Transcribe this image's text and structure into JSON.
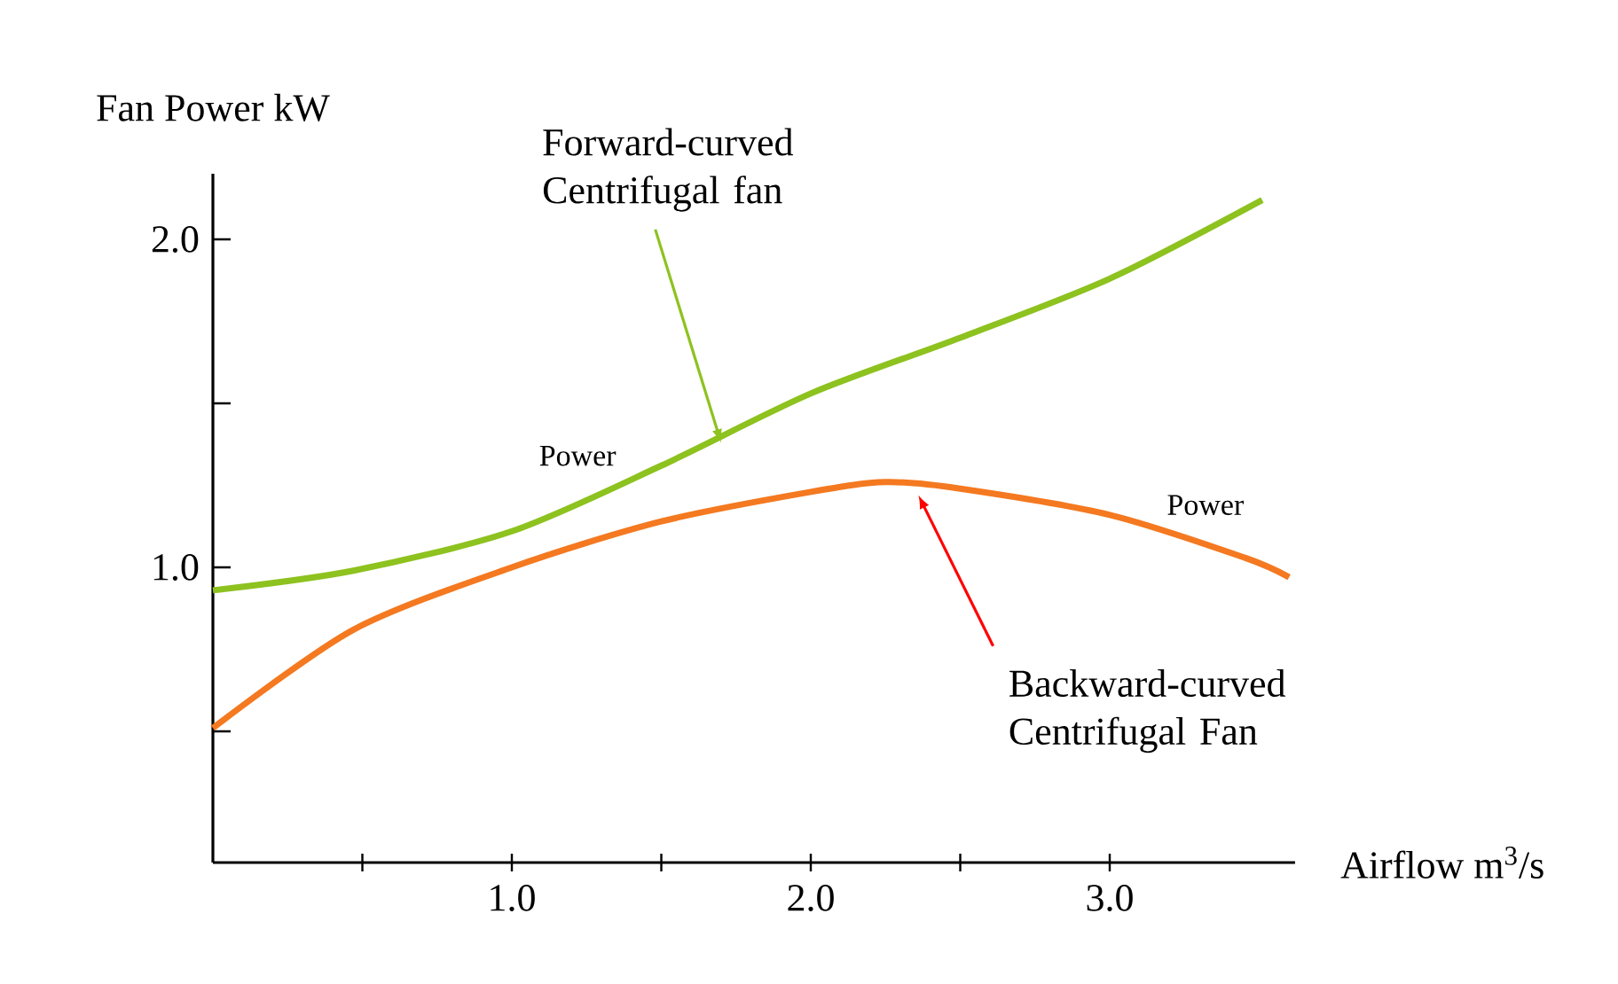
{
  "chart_data": {
    "type": "line",
    "xlabel": "Airflow m$^{3}$/s",
    "ylabel": "Fan Power kW",
    "series": [
      {
        "color": "#8dc21f",
        "x": [
          0,
          0.47,
          1.0,
          1.5,
          2.0,
          2.5,
          3.0,
          3.51
        ],
        "values": [
          0.93,
          0.99,
          1.11,
          1.31,
          1.53,
          1.7,
          1.88,
          2.12
        ]
      },
      {
        "color": "#f47920",
        "x": [
          0,
          0.47,
          1.0,
          1.5,
          2.0,
          2.25,
          2.5,
          3.0,
          3.45,
          3.6
        ],
        "values": [
          0.51,
          0.81,
          1.0,
          1.14,
          1.23,
          1.26,
          1.24,
          1.16,
          1.03,
          0.97
        ]
      }
    ],
    "xlim": [
      0,
      3.62
    ],
    "ylim": [
      0.1,
      2.2
    ],
    "xticks": [
      {
        "value": 0.5,
        "label": null
      },
      {
        "value": 1.0,
        "label": "1.0"
      },
      {
        "value": 1.5,
        "label": null
      },
      {
        "value": 2.0,
        "label": "2.0"
      },
      {
        "value": 2.5,
        "label": null
      },
      {
        "value": 3.0,
        "label": "3.0"
      }
    ],
    "yticks": [
      {
        "value": 0.5,
        "label": null
      },
      {
        "value": 1.0,
        "label": "1.0"
      },
      {
        "value": 1.5,
        "label": null
      },
      {
        "value": 2.0,
        "label": "2.0"
      }
    ],
    "annotations": [
      {
        "text": "Forward-curved Centrifugal fan",
        "x": 1.7,
        "y": 1.38
      },
      "Power",
      "Power",
      {
        "text": "Backward-curved Centrifugal Fan",
        "x": 2.36,
        "y": 1.22
      }
    ],
    "grid": false,
    "marker": "none",
    "line_style": "solid"
  }
}
